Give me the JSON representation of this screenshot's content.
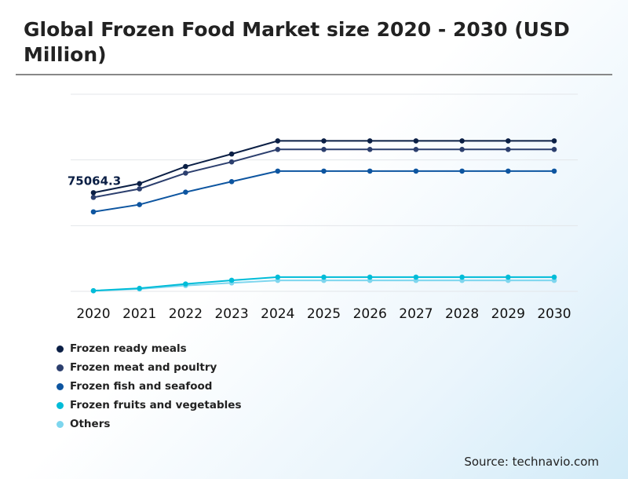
{
  "chart_data": {
    "type": "line",
    "title": "Global Frozen Food Market size 2020 - 2030 (USD Million)",
    "categories": [
      "2020",
      "2021",
      "2022",
      "2023",
      "2024",
      "2025",
      "2026",
      "2027",
      "2028",
      "2029",
      "2030"
    ],
    "ylim": [
      0,
      150000
    ],
    "grid": true,
    "series": [
      {
        "name": "Frozen ready meals",
        "color": "#0b1f45",
        "values": [
          75064.3,
          82000,
          95000,
          104500,
          114500,
          114500,
          114500,
          114500,
          114500,
          114500,
          114500
        ]
      },
      {
        "name": "Frozen meat and poultry",
        "color": "#2c3f6e",
        "values": [
          71500,
          78000,
          90000,
          98500,
          108000,
          108000,
          108000,
          108000,
          108000,
          108000,
          108000
        ]
      },
      {
        "name": "Frozen fish and seafood",
        "color": "#0d55a0",
        "values": [
          60500,
          66000,
          75500,
          83500,
          91500,
          91500,
          91500,
          91500,
          91500,
          91500,
          91500
        ]
      },
      {
        "name": "Frozen fruits and vegetables",
        "color": "#00bcd8",
        "values": [
          500,
          2300,
          5600,
          8400,
          10800,
          10800,
          10800,
          10800,
          10800,
          10800,
          10800
        ]
      },
      {
        "name": "Others",
        "color": "#7ed6ee",
        "values": [
          400,
          1800,
          4400,
          6400,
          8300,
          8300,
          8300,
          8300,
          8300,
          8300,
          8300
        ]
      }
    ],
    "annotations": [
      {
        "text": "75064.3",
        "series": 0,
        "category": "2020"
      }
    ]
  },
  "source": "Source: technavio.com"
}
